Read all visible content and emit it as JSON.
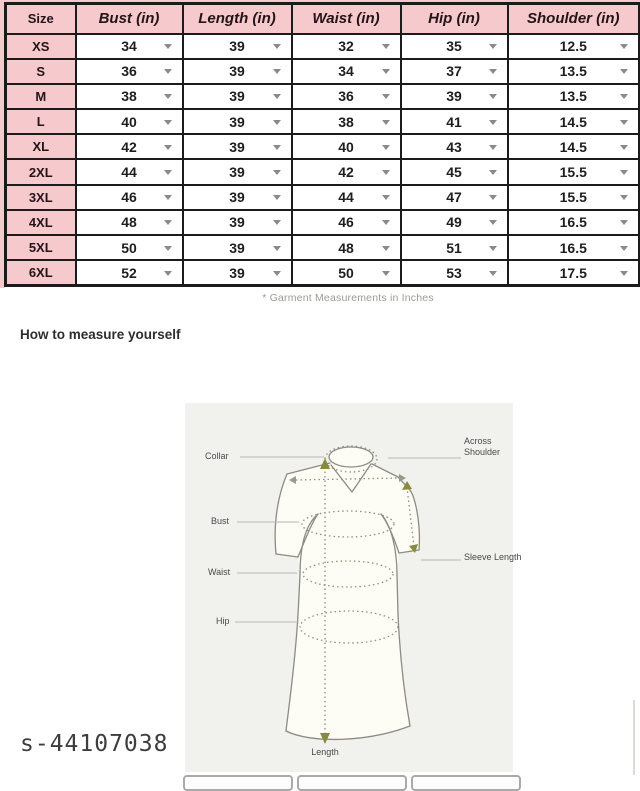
{
  "size_chart": {
    "columns": [
      "Size",
      "Bust (in)",
      "Length (in)",
      "Waist (in)",
      "Hip (in)",
      "Shoulder (in)"
    ],
    "rows": [
      [
        "XS",
        "34",
        "39",
        "32",
        "35",
        "12.5"
      ],
      [
        "S",
        "36",
        "39",
        "34",
        "37",
        "13.5"
      ],
      [
        "M",
        "38",
        "39",
        "36",
        "39",
        "13.5"
      ],
      [
        "L",
        "40",
        "39",
        "38",
        "41",
        "14.5"
      ],
      [
        "XL",
        "42",
        "39",
        "40",
        "43",
        "14.5"
      ],
      [
        "2XL",
        "44",
        "39",
        "42",
        "45",
        "15.5"
      ],
      [
        "3XL",
        "46",
        "39",
        "44",
        "47",
        "15.5"
      ],
      [
        "4XL",
        "48",
        "39",
        "46",
        "49",
        "16.5"
      ],
      [
        "5XL",
        "50",
        "39",
        "48",
        "51",
        "16.5"
      ],
      [
        "6XL",
        "52",
        "39",
        "50",
        "53",
        "17.5"
      ]
    ],
    "footnote": "* Garment Measurements in Inches"
  },
  "measure_guide": {
    "heading": "How to measure yourself",
    "labels": {
      "collar": "Collar",
      "bust": "Bust",
      "waist": "Waist",
      "hip": "Hip",
      "across_shoulder": "Across Shoulder",
      "sleeve_length": "Sleeve Length",
      "length": "Length"
    }
  },
  "watermark": "s-44107038",
  "colors": {
    "header_pink": "#f6c9cd",
    "table_border": "#1b1b1b",
    "caret_gray": "#8a8a8a",
    "diagram_bg": "#f1f1ee",
    "arrow_olive": "#8a8a3c"
  }
}
